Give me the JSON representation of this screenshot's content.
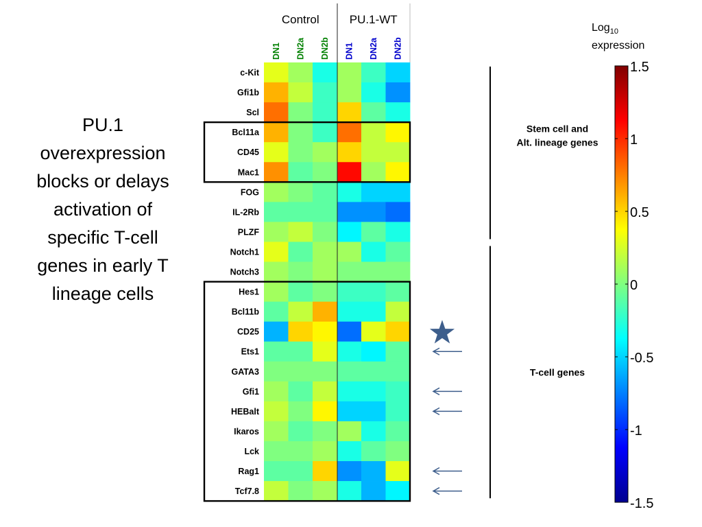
{
  "caption_lines": [
    "PU.1",
    "overexpression",
    "blocks or delays",
    "activation of",
    "specific T-cell",
    "genes in early T",
    "lineage cells"
  ],
  "colorbar": {
    "title_main": "Log",
    "title_sub": "10",
    "title_line2": "expression",
    "range": [
      -1.5,
      1.5
    ],
    "tick_values": [
      1.5,
      1,
      0.5,
      0,
      -0.5,
      -1,
      -1.5
    ],
    "tick_labels": [
      "1.5",
      "1",
      "0.5",
      "0",
      "-0.5",
      "-1",
      "-1.5"
    ],
    "colormap": "jet"
  },
  "colors": {
    "control_samples": "#008000",
    "pu1_samples": "#0000cc",
    "star": "#3d5e8c",
    "arrow": "#3d5e8c"
  },
  "chart_data": {
    "type": "heatmap",
    "groups": [
      {
        "name": "Control",
        "samples": [
          "DN1",
          "DN2a",
          "DN2b"
        ]
      },
      {
        "name": "PU.1-WT",
        "samples": [
          "DN1",
          "DN2a",
          "DN2b"
        ]
      }
    ],
    "rows": [
      "c-Kit",
      "Gfi1b",
      "Scl",
      "Bcl11a",
      "CD45",
      "Mac1",
      "FOG",
      "IL-2Rb",
      "PLZF",
      "Notch1",
      "Notch3",
      "Hes1",
      "Bcl11b",
      "CD25",
      "Ets1",
      "GATA3",
      "Gfi1",
      "HEBalt",
      "Ikaros",
      "Lck",
      "Rag1",
      "Tcf7.8"
    ],
    "values": [
      [
        0.3,
        0.1,
        -0.3,
        0.1,
        -0.2,
        -0.5
      ],
      [
        0.6,
        0.2,
        -0.2,
        0.1,
        -0.3,
        -0.7
      ],
      [
        0.8,
        0.0,
        -0.2,
        0.5,
        -0.1,
        -0.3
      ],
      [
        0.6,
        0.0,
        -0.2,
        0.8,
        0.2,
        0.4
      ],
      [
        0.3,
        0.0,
        0.1,
        0.5,
        0.2,
        0.2
      ],
      [
        0.7,
        -0.1,
        0.0,
        1.1,
        0.1,
        0.4
      ],
      [
        0.1,
        0.0,
        -0.1,
        -0.3,
        -0.5,
        -0.5
      ],
      [
        -0.1,
        -0.1,
        -0.1,
        -0.7,
        -0.7,
        -0.8
      ],
      [
        0.1,
        0.2,
        0.0,
        -0.4,
        -0.1,
        -0.3
      ],
      [
        0.3,
        -0.1,
        0.1,
        0.1,
        -0.3,
        -0.1
      ],
      [
        0.1,
        0.0,
        0.1,
        0.0,
        0.0,
        0.0
      ],
      [
        0.1,
        -0.1,
        0.0,
        -0.2,
        -0.2,
        -0.1
      ],
      [
        -0.1,
        0.2,
        0.6,
        -0.3,
        -0.3,
        0.2
      ],
      [
        -0.6,
        0.5,
        0.4,
        -0.8,
        0.3,
        0.5
      ],
      [
        -0.1,
        -0.1,
        0.3,
        -0.3,
        -0.4,
        -0.1
      ],
      [
        0.0,
        0.0,
        0.0,
        -0.1,
        -0.1,
        -0.1
      ],
      [
        0.1,
        -0.1,
        0.2,
        -0.3,
        -0.3,
        -0.2
      ],
      [
        0.2,
        0.0,
        0.4,
        -0.5,
        -0.5,
        -0.2
      ],
      [
        0.1,
        -0.1,
        0.0,
        0.1,
        -0.3,
        -0.1
      ],
      [
        0.0,
        0.0,
        0.1,
        -0.3,
        -0.1,
        0.0
      ],
      [
        -0.1,
        -0.1,
        0.5,
        -0.7,
        -0.6,
        0.3
      ],
      [
        0.2,
        0.0,
        0.1,
        -0.3,
        -0.6,
        -0.4
      ]
    ],
    "value_range": [
      -1.5,
      1.5
    ],
    "highlight_boxes": [
      {
        "rows": [
          "Bcl11a",
          "Mac1"
        ]
      },
      {
        "rows": [
          "Hes1",
          "Tcf7.8"
        ]
      }
    ],
    "row_brackets": [
      {
        "label_lines": [
          "Stem cell and",
          "Alt. lineage genes"
        ],
        "rows": [
          "c-Kit",
          "PLZF"
        ]
      },
      {
        "label_lines": [
          "T-cell genes"
        ],
        "rows": [
          "Notch1",
          "Tcf7.8"
        ]
      }
    ],
    "markers": [
      {
        "row": "CD25",
        "symbol": "star"
      },
      {
        "row": "Ets1",
        "symbol": "arrow-left"
      },
      {
        "row": "Gfi1",
        "symbol": "arrow-left"
      },
      {
        "row": "HEBalt",
        "symbol": "arrow-left"
      },
      {
        "row": "Rag1",
        "symbol": "arrow-left"
      },
      {
        "row": "Tcf7.8",
        "symbol": "arrow-left"
      }
    ]
  }
}
